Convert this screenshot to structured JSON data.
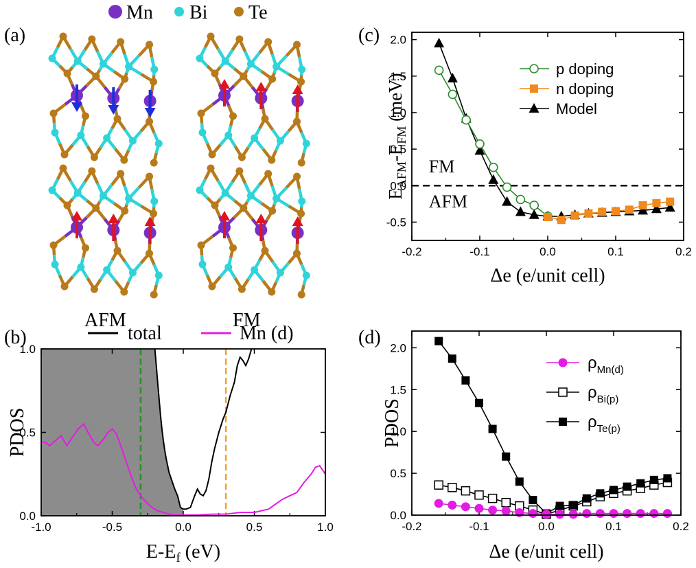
{
  "colors": {
    "mn": "#7a2fc4",
    "bi": "#2fd4d8",
    "te": "#b87a1a",
    "spin_down": "#1c2fd8",
    "spin_up": "#e0141e",
    "p_doping": "#2c8c2c",
    "n_doping": "#f08a1e",
    "model": "#000000",
    "total": "#000000",
    "mn_d": "#e31ce3",
    "shade": "#8c8c8c",
    "fermi_green": "#2c8c2c",
    "fermi_orange": "#f0a030"
  },
  "panel_a": {
    "label": "(a)",
    "legend": [
      {
        "symbol": "mn",
        "text": "Mn"
      },
      {
        "symbol": "bi",
        "text": "Bi"
      },
      {
        "symbol": "te",
        "text": "Te"
      }
    ],
    "structure_labels": [
      "AFM",
      "FM"
    ]
  },
  "panel_b": {
    "label": "(b)",
    "legend_total": "total",
    "legend_mn": "Mn (d)"
  },
  "panel_c": {
    "label": "(c)"
  },
  "panel_d": {
    "label": "(d)"
  },
  "chart_data": [
    {
      "id": "b",
      "type": "line",
      "xlabel_main": "E-E",
      "xlabel_sub": "f",
      "xlabel_tail": " (eV)",
      "ylabel": "PDOS",
      "xlim": [
        -1.0,
        1.0
      ],
      "ylim": [
        0.0,
        1.0
      ],
      "xticks": [
        -1.0,
        -0.5,
        0.0,
        0.5,
        1.0
      ],
      "xtick_labels": [
        "-1.0",
        "-0.5",
        "0.0",
        "0.5",
        "1.0"
      ],
      "yticks": [
        0.0,
        0.5,
        1.0
      ],
      "ytick_labels": [
        "0.0",
        "0.5",
        "1.0"
      ],
      "vlines": [
        {
          "x": -0.3,
          "color": "#2c8c2c"
        },
        {
          "x": 0.3,
          "color": "#f0a030"
        }
      ],
      "series": [
        {
          "name": "total",
          "color": "#000000",
          "x": [
            -0.2,
            -0.19,
            -0.18,
            -0.17,
            -0.16,
            -0.15,
            -0.14,
            -0.13,
            -0.12,
            -0.1,
            -0.08,
            -0.06,
            -0.04,
            -0.02,
            0.0,
            0.02,
            0.05,
            0.08,
            0.1,
            0.12,
            0.14,
            0.16,
            0.18,
            0.2,
            0.22,
            0.25,
            0.28,
            0.3,
            0.33,
            0.36,
            0.38,
            0.4,
            0.42,
            0.44,
            0.46,
            0.48,
            0.5
          ],
          "y": [
            1.0,
            0.9,
            0.8,
            0.7,
            0.6,
            0.52,
            0.45,
            0.39,
            0.34,
            0.26,
            0.21,
            0.16,
            0.12,
            0.05,
            0.04,
            0.04,
            0.05,
            0.12,
            0.16,
            0.13,
            0.12,
            0.15,
            0.22,
            0.32,
            0.4,
            0.5,
            0.58,
            0.62,
            0.72,
            0.8,
            0.9,
            0.95,
            0.93,
            0.9,
            0.94,
            1.0,
            1.0
          ]
        },
        {
          "name": "Mn (d)",
          "color": "#e31ce3",
          "x": [
            -1.0,
            -0.97,
            -0.94,
            -0.9,
            -0.86,
            -0.82,
            -0.78,
            -0.74,
            -0.7,
            -0.67,
            -0.63,
            -0.6,
            -0.56,
            -0.53,
            -0.5,
            -0.47,
            -0.44,
            -0.4,
            -0.36,
            -0.33,
            -0.3,
            -0.26,
            -0.22,
            -0.18,
            -0.14,
            -0.1,
            -0.05,
            0.0,
            0.05,
            0.1,
            0.2,
            0.3,
            0.4,
            0.5,
            0.55,
            0.6,
            0.65,
            0.7,
            0.75,
            0.8,
            0.85,
            0.9,
            0.93,
            0.96,
            1.0
          ],
          "y": [
            0.44,
            0.44,
            0.42,
            0.45,
            0.48,
            0.42,
            0.47,
            0.52,
            0.55,
            0.5,
            0.44,
            0.42,
            0.46,
            0.5,
            0.52,
            0.49,
            0.42,
            0.32,
            0.22,
            0.16,
            0.12,
            0.08,
            0.05,
            0.03,
            0.02,
            0.01,
            0.005,
            0.005,
            0.005,
            0.005,
            0.01,
            0.01,
            0.02,
            0.02,
            0.03,
            0.04,
            0.07,
            0.1,
            0.12,
            0.14,
            0.2,
            0.25,
            0.29,
            0.3,
            0.25
          ]
        }
      ]
    },
    {
      "id": "c",
      "type": "line",
      "xlabel": "Δe (e/unit cell)",
      "ylabel_main": "E",
      "ylabel_sub1": "AFM",
      "ylabel_mid": "-E",
      "ylabel_sub2": "FM",
      "ylabel_tail": " (meV)",
      "xlim": [
        -0.2,
        0.2
      ],
      "ylim": [
        -0.75,
        2.1
      ],
      "xticks": [
        -0.2,
        -0.1,
        0.0,
        0.1,
        0.2
      ],
      "xtick_labels": [
        "-0.2",
        "-0.1",
        "0.0",
        "0.1",
        "0.2"
      ],
      "yticks": [
        -0.5,
        0.0,
        0.5,
        1.0,
        1.5,
        2.0
      ],
      "ytick_labels": [
        "-0.5",
        "0.0",
        "0.5",
        "1.0",
        "1.5",
        "2.0"
      ],
      "hline": 0.0,
      "annotations": [
        {
          "text": "FM",
          "x": -0.175,
          "y": 0.18
        },
        {
          "text": "AFM",
          "x": -0.175,
          "y": -0.3
        }
      ],
      "series": [
        {
          "name": "p doping",
          "color": "#2c8c2c",
          "marker": "circle-open",
          "x": [
            -0.16,
            -0.14,
            -0.12,
            -0.1,
            -0.08,
            -0.06,
            -0.04,
            -0.02,
            0.0
          ],
          "y": [
            1.58,
            1.25,
            0.9,
            0.57,
            0.25,
            -0.02,
            -0.19,
            -0.27,
            -0.42
          ]
        },
        {
          "name": "n doping",
          "color": "#f08a1e",
          "marker": "square-filled",
          "x": [
            0.0,
            0.02,
            0.04,
            0.06,
            0.08,
            0.1,
            0.12,
            0.14,
            0.16,
            0.18
          ],
          "y": [
            -0.43,
            -0.47,
            -0.41,
            -0.38,
            -0.36,
            -0.35,
            -0.33,
            -0.27,
            -0.24,
            -0.22
          ]
        },
        {
          "name": "Model",
          "color": "#000000",
          "marker": "triangle-filled",
          "x": [
            -0.16,
            -0.14,
            -0.12,
            -0.1,
            -0.08,
            -0.06,
            -0.04,
            -0.02,
            0.0,
            0.02,
            0.04,
            0.06,
            0.08,
            0.1,
            0.12,
            0.14,
            0.16,
            0.18
          ],
          "y": [
            1.95,
            1.47,
            0.92,
            0.48,
            0.08,
            -0.22,
            -0.36,
            -0.4,
            -0.42,
            -0.42,
            -0.4,
            -0.38,
            -0.37,
            -0.36,
            -0.35,
            -0.34,
            -0.32,
            -0.3
          ]
        }
      ]
    },
    {
      "id": "d",
      "type": "line",
      "xlabel": "Δe (e/unit cell)",
      "ylabel": "PDOS",
      "xlim": [
        -0.2,
        0.2
      ],
      "ylim": [
        0.0,
        2.2
      ],
      "xticks": [
        -0.2,
        -0.1,
        0.0,
        0.1,
        0.2
      ],
      "xtick_labels": [
        "-0.2",
        "-0.1",
        "0.0",
        "0.1",
        "0.2"
      ],
      "yticks": [
        0.0,
        0.5,
        1.0,
        1.5,
        2.0
      ],
      "ytick_labels": [
        "0.0",
        "0.5",
        "1.0",
        "1.5",
        "2.0"
      ],
      "series": [
        {
          "name_main": "ρ",
          "name_sub": "Mn(d)",
          "color": "#e31ce3",
          "marker": "circle-filled",
          "x": [
            -0.16,
            -0.14,
            -0.12,
            -0.1,
            -0.08,
            -0.06,
            -0.04,
            -0.02,
            0.0,
            0.02,
            0.04,
            0.06,
            0.08,
            0.1,
            0.12,
            0.14,
            0.16,
            0.18
          ],
          "y": [
            0.14,
            0.12,
            0.1,
            0.08,
            0.06,
            0.05,
            0.03,
            0.02,
            0.01,
            0.01,
            0.01,
            0.02,
            0.02,
            0.02,
            0.02,
            0.02,
            0.02,
            0.02
          ]
        },
        {
          "name_main": "ρ",
          "name_sub": "Bi(p)",
          "color": "#000000",
          "marker": "square-open",
          "x": [
            -0.16,
            -0.14,
            -0.12,
            -0.1,
            -0.08,
            -0.06,
            -0.04,
            -0.02,
            0.0,
            0.02,
            0.04,
            0.06,
            0.08,
            0.1,
            0.12,
            0.14,
            0.16,
            0.18
          ],
          "y": [
            0.36,
            0.33,
            0.29,
            0.24,
            0.2,
            0.15,
            0.11,
            0.06,
            0.01,
            0.06,
            0.11,
            0.16,
            0.22,
            0.26,
            0.29,
            0.32,
            0.36,
            0.39
          ]
        },
        {
          "name_main": "ρ",
          "name_sub": "Te(p)",
          "color": "#000000",
          "marker": "square-filled",
          "x": [
            -0.16,
            -0.14,
            -0.12,
            -0.1,
            -0.08,
            -0.06,
            -0.04,
            -0.02,
            0.0,
            0.02,
            0.04,
            0.06,
            0.08,
            0.1,
            0.12,
            0.14,
            0.16,
            0.18
          ],
          "y": [
            2.08,
            1.87,
            1.61,
            1.34,
            1.03,
            0.7,
            0.4,
            0.18,
            0.02,
            0.11,
            0.12,
            0.2,
            0.26,
            0.3,
            0.34,
            0.38,
            0.42,
            0.44
          ]
        }
      ]
    }
  ]
}
